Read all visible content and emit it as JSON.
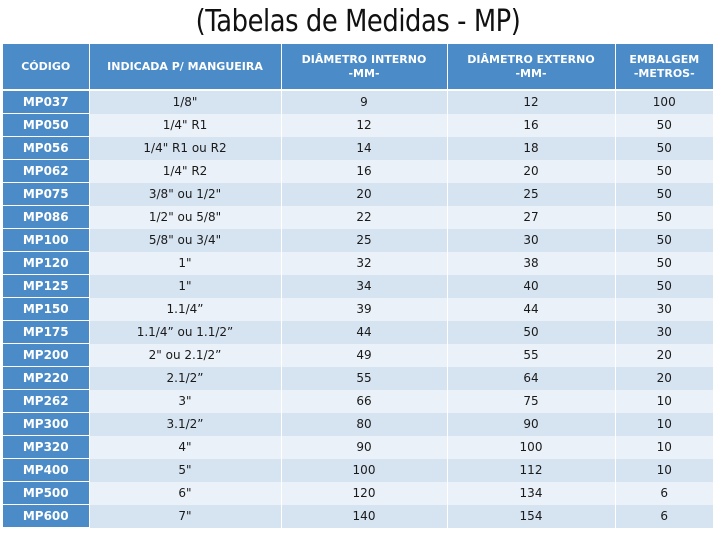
{
  "title": "(Tabelas de Medidas - MP)",
  "headers": {
    "codigo": "CÓDIGO",
    "indicada": "INDICADA P/ MANGUEIRA",
    "interno_line1": "DIÂMETRO INTERNO",
    "interno_line2": "-MM-",
    "externo_line1": "DIÂMETRO EXTERNO",
    "externo_line2": "-MM-",
    "embalagem_line1": "EMBALGEM",
    "embalagem_line2": "-METROS-"
  },
  "rows": [
    {
      "codigo": "MP037",
      "indicada": "1/8\"",
      "interno": "9",
      "externo": "12",
      "embalagem": "100"
    },
    {
      "codigo": "MP050",
      "indicada": "1/4\" R1",
      "interno": "12",
      "externo": "16",
      "embalagem": "50"
    },
    {
      "codigo": "MP056",
      "indicada": "1/4\" R1 ou R2",
      "interno": "14",
      "externo": "18",
      "embalagem": "50"
    },
    {
      "codigo": "MP062",
      "indicada": "1/4\" R2",
      "interno": "16",
      "externo": "20",
      "embalagem": "50"
    },
    {
      "codigo": "MP075",
      "indicada": "3/8\" ou 1/2\"",
      "interno": "20",
      "externo": "25",
      "embalagem": "50"
    },
    {
      "codigo": "MP086",
      "indicada": "1/2\" ou 5/8\"",
      "interno": "22",
      "externo": "27",
      "embalagem": "50"
    },
    {
      "codigo": "MP100",
      "indicada": "5/8\" ou 3/4\"",
      "interno": "25",
      "externo": "30",
      "embalagem": "50"
    },
    {
      "codigo": "MP120",
      "indicada": "1\"",
      "interno": "32",
      "externo": "38",
      "embalagem": "50"
    },
    {
      "codigo": "MP125",
      "indicada": "1\"",
      "interno": "34",
      "externo": "40",
      "embalagem": "50"
    },
    {
      "codigo": "MP150",
      "indicada": "1.1/4”",
      "interno": "39",
      "externo": "44",
      "embalagem": "30"
    },
    {
      "codigo": "MP175",
      "indicada": "1.1/4” ou 1.1/2”",
      "interno": "44",
      "externo": "50",
      "embalagem": "30"
    },
    {
      "codigo": "MP200",
      "indicada": "2\" ou 2.1/2”",
      "interno": "49",
      "externo": "55",
      "embalagem": "20"
    },
    {
      "codigo": "MP220",
      "indicada": "2.1/2”",
      "interno": "55",
      "externo": "64",
      "embalagem": "20"
    },
    {
      "codigo": "MP262",
      "indicada": "3\"",
      "interno": "66",
      "externo": "75",
      "embalagem": "10"
    },
    {
      "codigo": "MP300",
      "indicada": "3.1/2”",
      "interno": "80",
      "externo": "90",
      "embalagem": "10"
    },
    {
      "codigo": "MP320",
      "indicada": "4\"",
      "interno": "90",
      "externo": "100",
      "embalagem": "10"
    },
    {
      "codigo": "MP400",
      "indicada": "5\"",
      "interno": "100",
      "externo": "112",
      "embalagem": "10"
    },
    {
      "codigo": "MP500",
      "indicada": "6\"",
      "interno": "120",
      "externo": "134",
      "embalagem": "6"
    },
    {
      "codigo": "MP600",
      "indicada": "7\"",
      "interno": "140",
      "externo": "154",
      "embalagem": "6"
    }
  ],
  "colors": {
    "header_blue": "#4b8bc8",
    "row_dark": "#d6e3f1",
    "row_light": "#eaf1f8"
  }
}
